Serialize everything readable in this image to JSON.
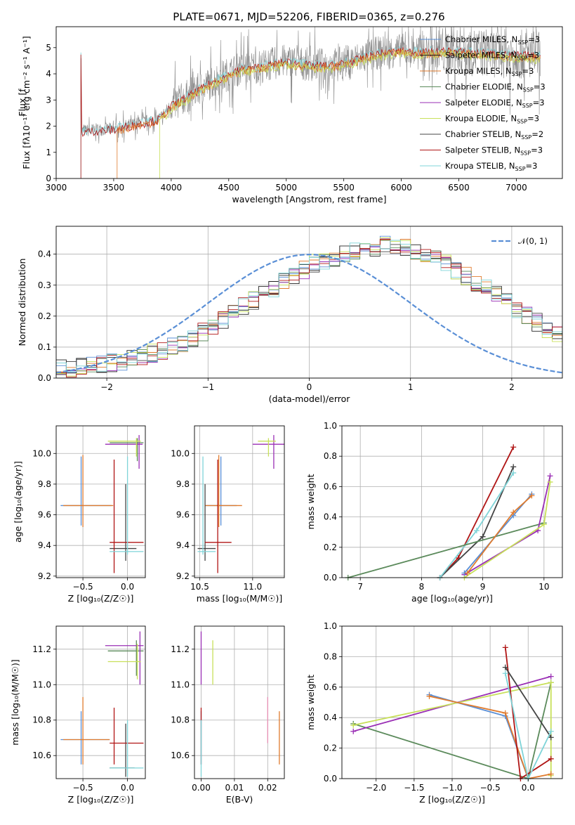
{
  "title": "PLATE=0671, MJD=52206, FIBERID=0365, z=0.276",
  "colors": {
    "Chabrier MILES": "#5a8fd6",
    "Salpeter MILES": "#222222",
    "Kroupa MILES": "#e07b2e",
    "Chabrier ELODIE": "#5b8a5b",
    "Salpeter ELODIE": "#9a2fb5",
    "Kroupa ELODIE": "#c8e05a",
    "Chabrier STELIB": "#444444",
    "Salpeter STELIB": "#b01515",
    "Kroupa STELIB": "#7fd4d8",
    "gray_data": "#8a8a8a",
    "gaussian": "#5a8fd6",
    "grid": "#b0b0b0"
  },
  "chart_data": [
    {
      "id": "spectrum",
      "type": "line",
      "xlabel": "wavelength [Angstrom, rest frame]",
      "ylabel": "Flux [f",
      "ylabel_full": "Flux [fλ10⁻¹⁷ erg cm⁻² s⁻¹ A⁻¹]",
      "xlim": [
        3000,
        7400
      ],
      "ylim": [
        0,
        5.8
      ],
      "xticks": [
        "3000",
        "3500",
        "4000",
        "4500",
        "5000",
        "5500",
        "6000",
        "6500",
        "7000"
      ],
      "yticks": [
        "0",
        "1",
        "2",
        "3",
        "4",
        "5"
      ],
      "legend_position": "right",
      "legend": [
        "Chabrier MILES, N_SSP=3",
        "Salpeter MILES, N_SSP=3",
        "Kroupa MILES, N_SSP=3",
        "Chabrier ELODIE, N_SSP=3",
        "Salpeter ELODIE, N_SSP=3",
        "Kroupa ELODIE, N_SSP=3",
        "Chabrier STELIB, N_SSP=2",
        "Salpeter STELIB, N_SSP=3",
        "Kroupa STELIB, N_SSP=3"
      ],
      "continuum": {
        "x": [
          3220,
          3300,
          3500,
          3700,
          3900,
          4000,
          4200,
          4400,
          4600,
          4800,
          5000,
          5200,
          5400,
          5600,
          5800,
          6000,
          6200,
          6400,
          6600,
          6800,
          7000,
          7200
        ],
        "y": [
          1.8,
          1.85,
          1.9,
          2.1,
          2.3,
          2.8,
          3.3,
          3.8,
          4.2,
          4.3,
          4.5,
          4.35,
          4.35,
          4.55,
          4.8,
          4.9,
          4.85,
          4.9,
          4.85,
          4.8,
          4.75,
          4.7
        ]
      }
    },
    {
      "id": "residuals",
      "type": "bar",
      "xlabel": "(data-model)/error",
      "ylabel": "Normed distribution",
      "xlim": [
        -2.5,
        2.5
      ],
      "ylim": [
        0,
        0.49
      ],
      "xticks": [
        "−2",
        "−1",
        "0",
        "1",
        "2"
      ],
      "yticks": [
        "0.0",
        "0.1",
        "0.2",
        "0.3",
        "0.4"
      ],
      "legend": "𝒩(0, 1)",
      "bin_width": 0.1,
      "bin_start": -2.5,
      "base_hist": [
        0.03,
        0.03,
        0.04,
        0.04,
        0.045,
        0.05,
        0.05,
        0.06,
        0.07,
        0.08,
        0.09,
        0.1,
        0.11,
        0.13,
        0.15,
        0.17,
        0.19,
        0.21,
        0.23,
        0.25,
        0.27,
        0.29,
        0.31,
        0.33,
        0.35,
        0.37,
        0.38,
        0.39,
        0.4,
        0.41,
        0.41,
        0.42,
        0.43,
        0.43,
        0.42,
        0.41,
        0.4,
        0.39,
        0.37,
        0.35,
        0.33,
        0.31,
        0.29,
        0.27,
        0.25,
        0.22,
        0.2,
        0.18,
        0.16,
        0.14
      ],
      "right_hist": [
        0.16,
        0.15,
        0.13,
        0.12,
        0.11,
        0.1,
        0.09,
        0.08,
        0.075,
        0.07,
        0.06,
        0.05,
        0.045,
        0.04,
        0.035,
        0.03,
        0.03,
        0.025,
        0.02,
        0.02,
        0.02,
        0.02,
        0.02,
        0.02,
        0.02
      ]
    },
    {
      "id": "age_Z",
      "type": "scatter",
      "xlabel": "Z [log₁₀(Z/Z☉)]",
      "ylabel": "age  [log₁₀(age/yr)]",
      "xlim": [
        -0.8,
        0.2
      ],
      "ylim": [
        9.19,
        10.18
      ],
      "xticks": [
        "−0.5",
        "0.0"
      ],
      "yticks": [
        "9.2",
        "9.4",
        "9.6",
        "9.8",
        "10.0"
      ],
      "points": [
        {
          "s": "Chabrier MILES",
          "x": -0.52,
          "y": 9.66,
          "xe": [
            -0.75,
            -0.18
          ],
          "ye": [
            9.53,
            9.98
          ]
        },
        {
          "s": "Kroupa MILES",
          "x": -0.5,
          "y": 9.66,
          "xe": [
            -0.72,
            -0.16
          ],
          "ye": [
            9.52,
            9.99
          ]
        },
        {
          "s": "Chabrier ELODIE",
          "x": 0.11,
          "y": 10.07,
          "xe": [
            -0.2,
            0.18
          ],
          "ye": [
            9.95,
            10.1
          ]
        },
        {
          "s": "Salpeter ELODIE",
          "x": 0.13,
          "y": 10.06,
          "xe": [
            -0.25,
            0.17
          ],
          "ye": [
            9.9,
            10.12
          ]
        },
        {
          "s": "Kroupa ELODIE",
          "x": 0.1,
          "y": 10.08,
          "xe": [
            -0.22,
            0.15
          ],
          "ye": [
            9.98,
            10.1
          ]
        },
        {
          "s": "Chabrier STELIB",
          "x": -0.02,
          "y": 9.38,
          "xe": [
            -0.2,
            0.1
          ],
          "ye": [
            9.3,
            9.8
          ]
        },
        {
          "s": "Salpeter STELIB",
          "x": -0.15,
          "y": 9.42,
          "xe": [
            -0.2,
            0.18
          ],
          "ye": [
            9.22,
            9.96
          ]
        },
        {
          "s": "Kroupa STELIB",
          "x": 0.0,
          "y": 9.36,
          "xe": [
            -0.2,
            0.18
          ],
          "ye": [
            9.34,
            9.98
          ]
        }
      ]
    },
    {
      "id": "age_mass",
      "type": "scatter",
      "xlabel": "mass [log₁₀(M/M☉)]",
      "xlim": [
        10.45,
        11.3
      ],
      "ylim": [
        9.19,
        10.18
      ],
      "xticks": [
        "10.5",
        "11.0"
      ],
      "yticks": [
        "9.2",
        "9.4",
        "9.6",
        "9.8",
        "10.0"
      ],
      "points": [
        {
          "s": "Chabrier MILES",
          "x": 10.7,
          "y": 9.66,
          "xe": [
            10.55,
            10.85
          ],
          "ye": [
            9.53,
            9.98
          ]
        },
        {
          "s": "Kroupa MILES",
          "x": 10.68,
          "y": 9.66,
          "xe": [
            10.55,
            10.9
          ],
          "ye": [
            9.52,
            9.99
          ]
        },
        {
          "s": "Salpeter ELODIE",
          "x": 11.2,
          "y": 10.06,
          "xe": [
            11.0,
            11.3
          ],
          "ye": [
            9.9,
            10.12
          ]
        },
        {
          "s": "Kroupa ELODIE",
          "x": 11.15,
          "y": 10.08,
          "xe": [
            11.05,
            11.22
          ],
          "ye": [
            9.98,
            10.1
          ]
        },
        {
          "s": "Chabrier STELIB",
          "x": 10.55,
          "y": 9.38,
          "xe": [
            10.48,
            10.65
          ],
          "ye": [
            9.3,
            9.8
          ]
        },
        {
          "s": "Salpeter STELIB",
          "x": 10.67,
          "y": 9.42,
          "xe": [
            10.55,
            10.8
          ],
          "ye": [
            9.22,
            9.96
          ]
        },
        {
          "s": "Kroupa STELIB",
          "x": 10.53,
          "y": 9.36,
          "xe": [
            10.48,
            10.65
          ],
          "ye": [
            9.34,
            9.98
          ]
        }
      ]
    },
    {
      "id": "weight_age",
      "type": "line",
      "xlabel": "age  [log₁₀(age/yr)]",
      "ylabel": "mass weight",
      "xlim": [
        6.7,
        10.3
      ],
      "ylim": [
        0,
        1.0
      ],
      "xticks": [
        "7",
        "8",
        "9",
        "10"
      ],
      "yticks": [
        "0.0",
        "0.2",
        "0.4",
        "0.6",
        "0.8",
        "1.0"
      ],
      "series": [
        {
          "s": "Salpeter STELIB",
          "x": [
            8.3,
            8.6,
            9.5
          ],
          "y": [
            0.0,
            0.13,
            0.86
          ]
        },
        {
          "s": "Chabrier STELIB",
          "x": [
            8.3,
            9.0,
            9.5
          ],
          "y": [
            0.0,
            0.27,
            0.73
          ]
        },
        {
          "s": "Kroupa STELIB",
          "x": [
            8.3,
            8.9,
            9.5
          ],
          "y": [
            0.0,
            0.31,
            0.69
          ]
        },
        {
          "s": "Chabrier ELODIE",
          "x": [
            6.8,
            10.0
          ],
          "y": [
            0.0,
            0.36
          ]
        },
        {
          "s": "Salpeter ELODIE",
          "x": [
            8.7,
            9.9,
            10.1
          ],
          "y": [
            0.02,
            0.31,
            0.67
          ]
        },
        {
          "s": "Kroupa ELODIE",
          "x": [
            8.7,
            10.0,
            10.1
          ],
          "y": [
            0.0,
            0.35,
            0.63
          ]
        },
        {
          "s": "Chabrier MILES",
          "x": [
            8.7,
            9.5,
            9.8
          ],
          "y": [
            0.03,
            0.41,
            0.55
          ]
        },
        {
          "s": "Kroupa MILES",
          "x": [
            8.75,
            9.5,
            9.8
          ],
          "y": [
            0.03,
            0.43,
            0.54
          ]
        }
      ]
    },
    {
      "id": "mass_Z",
      "type": "scatter",
      "xlabel": "Z [log₁₀(Z/Z☉)]",
      "ylabel": "mass [log₁₀(M/M☉)]",
      "xlim": [
        -0.8,
        0.2
      ],
      "ylim": [
        10.47,
        11.33
      ],
      "xticks": [
        "−0.5",
        "0.0"
      ],
      "yticks": [
        "10.6",
        "10.8",
        "11.0",
        "11.2"
      ],
      "points": [
        {
          "s": "Chabrier MILES",
          "x": -0.52,
          "y": 10.69,
          "xe": [
            -0.75,
            -0.2
          ],
          "ye": [
            10.55,
            10.85
          ]
        },
        {
          "s": "Kroupa MILES",
          "x": -0.5,
          "y": 10.69,
          "xe": [
            -0.72,
            -0.2
          ],
          "ye": [
            10.55,
            10.93
          ]
        },
        {
          "s": "Chabrier ELODIE",
          "x": 0.1,
          "y": 11.19,
          "xe": [
            -0.22,
            0.18
          ],
          "ye": [
            11.05,
            11.25
          ]
        },
        {
          "s": "Salpeter ELODIE",
          "x": 0.14,
          "y": 11.22,
          "xe": [
            -0.25,
            0.18
          ],
          "ye": [
            11.0,
            11.3
          ]
        },
        {
          "s": "Kroupa ELODIE",
          "x": 0.11,
          "y": 11.13,
          "xe": [
            -0.22,
            0.15
          ],
          "ye": [
            11.03,
            11.23
          ]
        },
        {
          "s": "Chabrier STELIB",
          "x": -0.02,
          "y": 10.53,
          "xe": [
            -0.2,
            0.08
          ],
          "ye": [
            10.48,
            10.78
          ]
        },
        {
          "s": "Salpeter STELIB",
          "x": -0.15,
          "y": 10.67,
          "xe": [
            -0.2,
            0.18
          ],
          "ye": [
            10.55,
            10.87
          ]
        },
        {
          "s": "Kroupa STELIB",
          "x": 0.0,
          "y": 10.53,
          "xe": [
            -0.2,
            0.18
          ],
          "ye": [
            10.48,
            10.8
          ]
        }
      ]
    },
    {
      "id": "mass_ebv",
      "type": "scatter",
      "xlabel": "E(B-V)",
      "xlim": [
        -0.002,
        0.025
      ],
      "ylim": [
        10.47,
        11.33
      ],
      "xticks": [
        "0.00",
        "0.01",
        "0.02"
      ],
      "yticks": [
        "10.6",
        "10.8",
        "11.0",
        "11.2"
      ],
      "points": [
        {
          "s": "Chabrier MILES",
          "x": 0.0,
          "y": 10.69,
          "ye": [
            10.55,
            10.85
          ]
        },
        {
          "s": "Kroupa MILES",
          "x": 0.0235,
          "y": 10.69,
          "ye": [
            10.55,
            10.85
          ]
        },
        {
          "s": "Salpeter ELODIE",
          "x": 0.0,
          "y": 11.22,
          "ye": [
            11.0,
            11.3
          ]
        },
        {
          "s": "Kroupa ELODIE",
          "x": 0.0035,
          "y": 11.13,
          "ye": [
            11.0,
            11.25
          ]
        },
        {
          "s": "Salpeter STELIB",
          "x": 0.0,
          "y": 10.67,
          "ye": [
            10.55,
            10.87
          ]
        },
        {
          "s": "Kroupa STELIB",
          "x": 0.0,
          "y": 10.53,
          "ye": [
            10.48,
            10.8
          ]
        },
        {
          "s": "Pink",
          "x": 0.02,
          "y": 10.8,
          "ye": [
            10.67,
            10.93
          ]
        }
      ]
    },
    {
      "id": "weight_Z",
      "type": "line",
      "xlabel": "Z [log₁₀(Z/Z☉)]",
      "ylabel": "mass weight",
      "xlim": [
        -2.45,
        0.45
      ],
      "ylim": [
        0,
        1.0
      ],
      "xticks": [
        "−2.0",
        "−1.5",
        "−1.0",
        "−0.5",
        "0.0"
      ],
      "yticks": [
        "0.0",
        "0.2",
        "0.4",
        "0.6",
        "0.8",
        "1.0"
      ],
      "series": [
        {
          "s": "Chabrier ELODIE",
          "x": [
            -2.3,
            0.0,
            0.3
          ],
          "y": [
            0.36,
            0.0,
            0.63
          ]
        },
        {
          "s": "Salpeter ELODIE",
          "x": [
            -2.3,
            0.3
          ],
          "y": [
            0.31,
            0.67
          ]
        },
        {
          "s": "Kroupa ELODIE",
          "x": [
            -2.3,
            0.3,
            0.3
          ],
          "y": [
            0.35,
            0.63,
            0.02
          ]
        },
        {
          "s": "Chabrier MILES",
          "x": [
            -1.3,
            -0.3,
            0.0
          ],
          "y": [
            0.55,
            0.41,
            0.0
          ]
        },
        {
          "s": "Kroupa MILES",
          "x": [
            -1.3,
            -0.3,
            0.0,
            0.3
          ],
          "y": [
            0.54,
            0.43,
            0.0,
            0.03
          ]
        },
        {
          "s": "Salpeter STELIB",
          "x": [
            -0.3,
            -0.1,
            0.3
          ],
          "y": [
            0.86,
            0.0,
            0.13
          ]
        },
        {
          "s": "Chabrier STELIB",
          "x": [
            -0.3,
            0.3
          ],
          "y": [
            0.73,
            0.27
          ]
        },
        {
          "s": "Kroupa STELIB",
          "x": [
            -0.3,
            0.0,
            0.3
          ],
          "y": [
            0.69,
            0.0,
            0.31
          ]
        }
      ]
    }
  ]
}
